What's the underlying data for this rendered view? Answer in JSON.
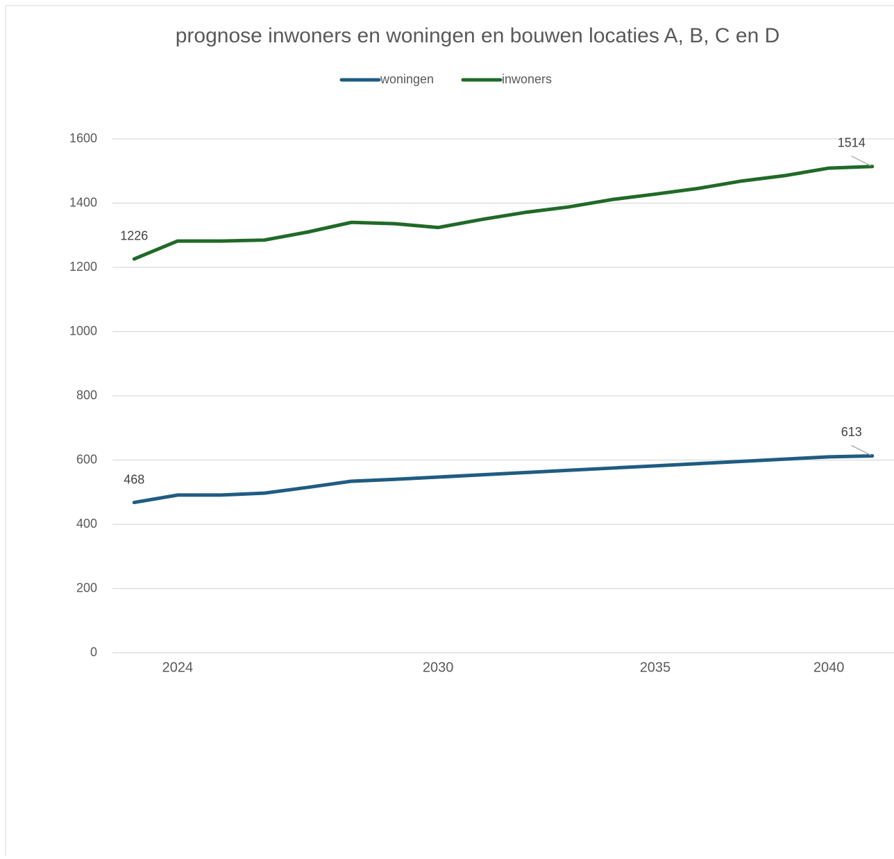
{
  "chart_data": {
    "type": "line",
    "title": "prognose inwoners en woningen en bouwen locaties A, B, C en D",
    "categories": [
      null,
      "2024",
      null,
      null,
      null,
      null,
      null,
      "2030",
      null,
      null,
      null,
      null,
      "2035",
      null,
      null,
      null,
      "2040",
      null
    ],
    "series": [
      {
        "name": "woningen",
        "color": "#1f5c82",
        "values": [
          468,
          491,
          491,
          497,
          515,
          534,
          540,
          547,
          554,
          561,
          568,
          575,
          582,
          589,
          596,
          603,
          610,
          613
        ]
      },
      {
        "name": "inwoners",
        "color": "#206a27",
        "values": [
          1226,
          1282,
          1282,
          1285,
          1310,
          1340,
          1336,
          1324,
          1349,
          1371,
          1388,
          1411,
          1428,
          1446,
          1469,
          1486,
          1509,
          1514
        ]
      }
    ],
    "data_labels_at": [
      0,
      17
    ],
    "ylim": [
      0,
      1600
    ],
    "yticks": [
      0,
      200,
      400,
      600,
      800,
      1000,
      1200,
      1400,
      1600
    ],
    "grid": true,
    "legend": "top"
  }
}
